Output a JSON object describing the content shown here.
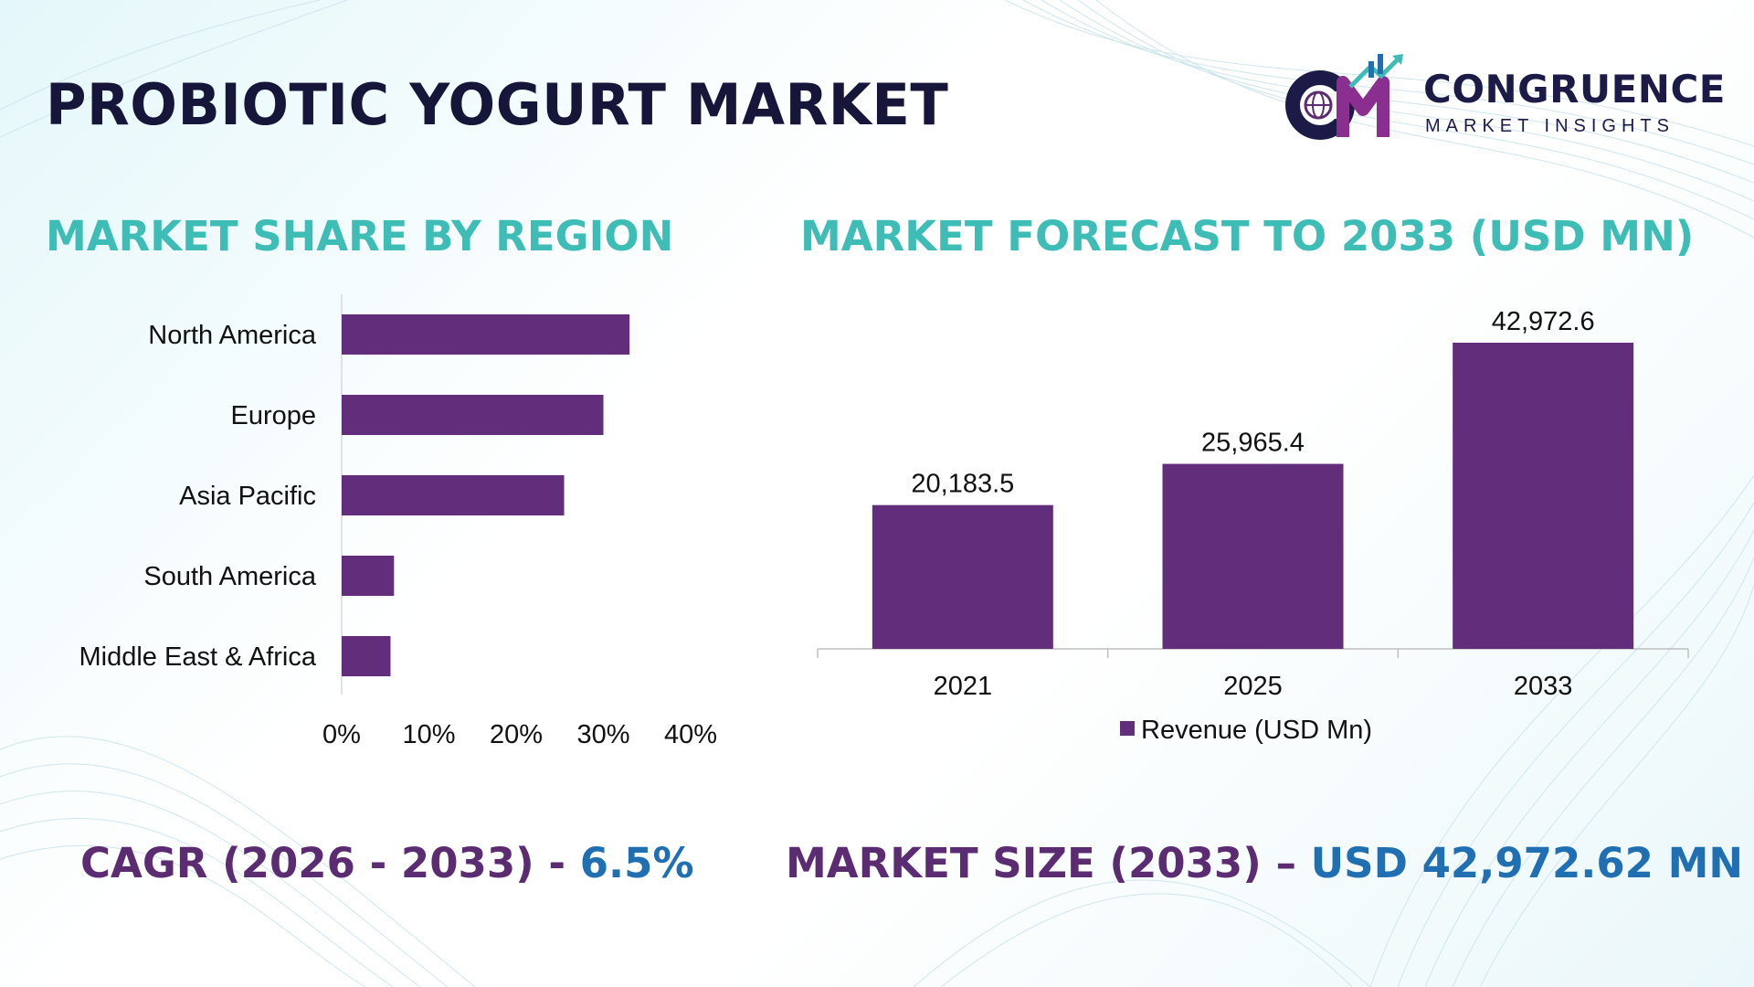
{
  "title": "PROBIOTIC YOGURT MARKET",
  "logo": {
    "name": "CONGRUENCE",
    "subtitle": "MARKET INSIGHTS"
  },
  "colors": {
    "bar": "#622d7a",
    "section_title": "#3dbdb6",
    "title": "#15163a",
    "cagr_value": "#1f6fb2"
  },
  "left_section_title": "MARKET SHARE BY REGION",
  "right_section_title": "MARKET FORECAST TO 2033 (USD MN)",
  "footer": {
    "cagr_label": "CAGR (2026 - 2033) - ",
    "cagr_value": "6.5%",
    "size_label": "MARKET SIZE (2033) – ",
    "size_value": "USD 42,972.62 MN"
  },
  "chart_data": [
    {
      "type": "bar",
      "orientation": "horizontal",
      "categories": [
        "North America",
        "Europe",
        "Asia Pacific",
        "South America",
        "Middle East & Africa"
      ],
      "values": [
        33,
        30,
        25.5,
        6,
        5.6
      ],
      "xlim": [
        0,
        40
      ],
      "xticks": [
        "0%",
        "10%",
        "20%",
        "30%",
        "40%"
      ],
      "grid": false
    },
    {
      "type": "bar",
      "categories": [
        "2021",
        "2025",
        "2033"
      ],
      "values": [
        20183.5,
        25965.4,
        42972.6
      ],
      "data_labels": [
        "20,183.5",
        "25,965.4",
        "42,972.6"
      ],
      "legend": [
        "Revenue (USD Mn)"
      ],
      "legend_position": "bottom",
      "ylim": [
        0,
        45000
      ],
      "grid": false
    }
  ]
}
